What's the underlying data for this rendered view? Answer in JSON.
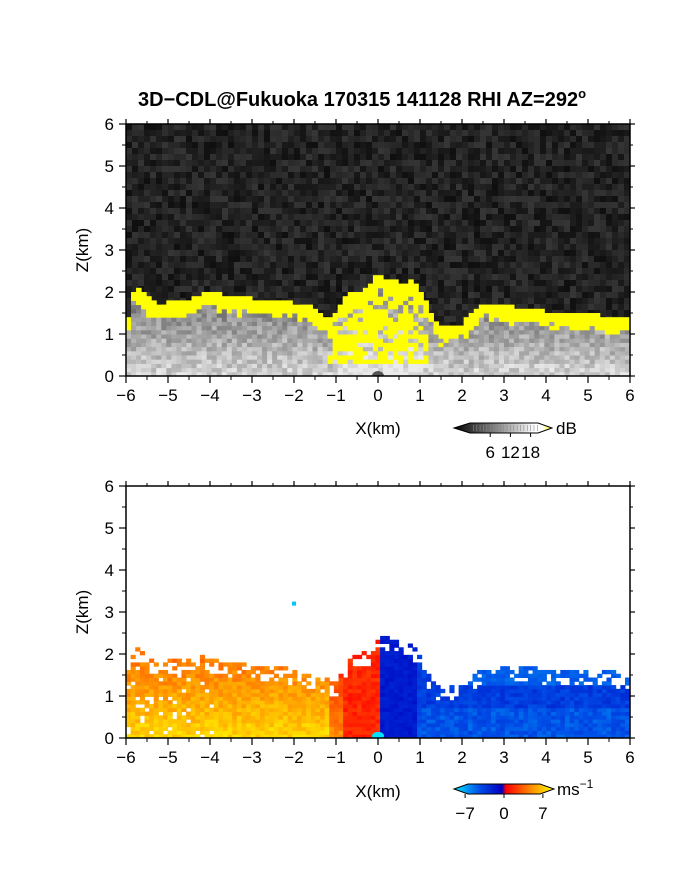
{
  "figure": {
    "title": "3D−CDL@Fukuoka 170315 141128 RHI AZ=292",
    "title_superscript": "o"
  },
  "chart_data": [
    {
      "type": "heatmap",
      "panel": "reflectivity",
      "xlabel": "X(km)",
      "ylabel": "Z(km)",
      "xlim": [
        -6,
        6
      ],
      "ylim": [
        0,
        6
      ],
      "x_ticks": [
        "−6",
        "−5",
        "−4",
        "−3",
        "−2",
        "−1",
        "0",
        "1",
        "2",
        "3",
        "4",
        "5",
        "6"
      ],
      "y_ticks": [
        "0",
        "1",
        "2",
        "3",
        "4",
        "5",
        "6"
      ],
      "colorbar": {
        "unit": "dB",
        "ticks": [
          6,
          12,
          18
        ],
        "tick_labels": [
          "6",
          "12",
          "18"
        ],
        "range": [
          0,
          21
        ],
        "colors": [
          "#000000",
          "#ffffff",
          "#ffff00"
        ]
      },
      "background_color": "#202020",
      "highlight_color": "#ffff00",
      "cloud_top_profile": {
        "x": [
          -6,
          -5.8,
          -5.5,
          -5.2,
          -5,
          -4.7,
          -4.5,
          -4.2,
          -4,
          -3.5,
          -3,
          -2.5,
          -2,
          -1.5,
          -1.2,
          -1,
          -0.8,
          -0.6,
          -0.4,
          -0.2,
          0,
          0.2,
          0.4,
          0.6,
          0.8,
          1,
          1.2,
          1.5,
          2,
          2.5,
          3,
          3.5,
          4,
          4.5,
          5,
          5.5,
          6
        ],
        "z": [
          1.1,
          2.1,
          1.85,
          1.6,
          1.7,
          1.75,
          1.8,
          1.9,
          1.95,
          1.85,
          1.8,
          1.75,
          1.7,
          1.6,
          1.35,
          1.5,
          1.8,
          2.0,
          1.9,
          2.1,
          2.4,
          2.2,
          2.3,
          2.1,
          2.3,
          2.0,
          1.6,
          1.1,
          1.2,
          1.7,
          1.65,
          1.55,
          1.5,
          1.45,
          1.45,
          1.35,
          1.35
        ]
      }
    },
    {
      "type": "heatmap",
      "panel": "doppler_velocity",
      "xlabel": "X(km)",
      "ylabel": "Z(km)",
      "xlim": [
        -6,
        6
      ],
      "ylim": [
        0,
        6
      ],
      "x_ticks": [
        "−6",
        "−5",
        "−4",
        "−3",
        "−2",
        "−1",
        "0",
        "1",
        "2",
        "3",
        "4",
        "5",
        "6"
      ],
      "y_ticks": [
        "0",
        "1",
        "2",
        "3",
        "4",
        "5",
        "6"
      ],
      "colorbar": {
        "unit": "ms",
        "unit_superscript": "−1",
        "ticks": [
          -7,
          0,
          7
        ],
        "tick_labels": [
          "−7",
          "0",
          "7"
        ],
        "range": [
          -9,
          9
        ],
        "colors": [
          "#00e5ff",
          "#0050e8",
          "#0000c0",
          "#ff0000",
          "#ff8000",
          "#ffff00"
        ]
      },
      "echo_top_profile": {
        "x": [
          -6,
          -5.8,
          -5.5,
          -5.2,
          -5,
          -4.7,
          -4.5,
          -4.2,
          -4,
          -3.5,
          -3,
          -2.5,
          -2,
          -1.5,
          -1,
          -0.8,
          -0.6,
          -0.4,
          -0.2,
          0,
          0.2,
          0.4,
          0.6,
          0.8,
          1,
          1.2,
          1.5,
          2,
          2.5,
          3,
          3.5,
          4,
          4.5,
          5,
          5.5,
          6
        ],
        "z": [
          1.4,
          2.2,
          1.9,
          1.65,
          1.8,
          1.9,
          1.85,
          1.9,
          1.85,
          1.75,
          1.7,
          1.65,
          1.6,
          1.45,
          1.3,
          1.55,
          1.95,
          2.0,
          2.05,
          2.3,
          2.4,
          2.3,
          2.1,
          2.25,
          1.9,
          1.5,
          1.1,
          1.25,
          1.6,
          1.7,
          1.65,
          1.6,
          1.55,
          1.55,
          1.6,
          1.35
        ]
      },
      "isolated_echo": {
        "x": -2,
        "z": 3.2
      }
    }
  ]
}
